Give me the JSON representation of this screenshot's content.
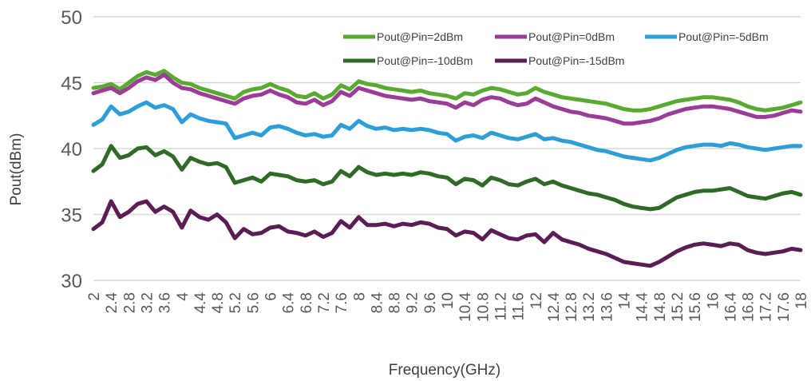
{
  "chart_data": {
    "type": "line",
    "title": "",
    "xlabel": "Frequency(GHz)",
    "ylabel": "Pout(dBm)",
    "ylim": [
      30,
      50
    ],
    "xlim": [
      2,
      18
    ],
    "yticks": [
      30,
      35,
      40,
      45,
      50
    ],
    "xticks": [
      "2",
      "2.4",
      "2.8",
      "3.2",
      "3.6",
      "4",
      "4.4",
      "4.8",
      "5.2",
      "5.6",
      "6",
      "6.4",
      "6.8",
      "7.2",
      "7.6",
      "8",
      "8.4",
      "8.8",
      "9.2",
      "9.6",
      "10",
      "10.4",
      "10.8",
      "11.2",
      "11.6",
      "12",
      "12.4",
      "12.8",
      "13.2",
      "13.6",
      "14",
      "14.4",
      "14.8",
      "15.2",
      "15.6",
      "16",
      "16.4",
      "16.8",
      "17.2",
      "17.6",
      "18"
    ],
    "grid": true,
    "legend_position": "top-right",
    "series": [
      {
        "name": "Pout@Pin=2dBm",
        "color": "#5aaa32",
        "x": [
          2,
          2.2,
          2.4,
          2.6,
          2.8,
          3.0,
          3.2,
          3.4,
          3.6,
          3.8,
          4.0,
          4.2,
          4.4,
          4.6,
          4.8,
          5.0,
          5.2,
          5.4,
          5.6,
          5.8,
          6.0,
          6.2,
          6.4,
          6.6,
          6.8,
          7.0,
          7.2,
          7.4,
          7.6,
          7.8,
          8.0,
          8.2,
          8.4,
          8.6,
          8.8,
          9.0,
          9.2,
          9.4,
          9.6,
          9.8,
          10.0,
          10.2,
          10.4,
          10.6,
          10.8,
          11.0,
          11.2,
          11.4,
          11.6,
          11.8,
          12.0,
          12.2,
          12.4,
          12.6,
          12.8,
          13.0,
          13.2,
          13.4,
          13.6,
          13.8,
          14.0,
          14.2,
          14.4,
          14.6,
          14.8,
          15.0,
          15.2,
          15.4,
          15.6,
          15.8,
          16.0,
          16.2,
          16.4,
          16.6,
          16.8,
          17.0,
          17.2,
          17.4,
          17.6,
          17.8,
          18.0
        ],
        "y": [
          44.6,
          44.7,
          44.9,
          44.5,
          45.0,
          45.5,
          45.8,
          45.6,
          45.9,
          45.4,
          45.0,
          44.9,
          44.6,
          44.4,
          44.2,
          44.0,
          43.8,
          44.3,
          44.5,
          44.6,
          44.9,
          44.6,
          44.4,
          44.0,
          43.9,
          44.2,
          43.8,
          44.1,
          44.8,
          44.5,
          45.1,
          44.9,
          44.8,
          44.6,
          44.5,
          44.4,
          44.3,
          44.4,
          44.2,
          44.1,
          44.0,
          43.8,
          44.2,
          44.1,
          44.4,
          44.6,
          44.5,
          44.3,
          44.1,
          44.2,
          44.6,
          44.3,
          44.1,
          43.9,
          43.8,
          43.7,
          43.6,
          43.5,
          43.4,
          43.2,
          43.0,
          42.9,
          42.9,
          43.0,
          43.2,
          43.4,
          43.6,
          43.7,
          43.8,
          43.9,
          43.9,
          43.8,
          43.7,
          43.5,
          43.2,
          43.0,
          42.9,
          43.0,
          43.1,
          43.3,
          43.5
        ]
      },
      {
        "name": "Pout@Pin=0dBm",
        "color": "#9b3c96",
        "x": [
          2,
          2.2,
          2.4,
          2.6,
          2.8,
          3.0,
          3.2,
          3.4,
          3.6,
          3.8,
          4.0,
          4.2,
          4.4,
          4.6,
          4.8,
          5.0,
          5.2,
          5.4,
          5.6,
          5.8,
          6.0,
          6.2,
          6.4,
          6.6,
          6.8,
          7.0,
          7.2,
          7.4,
          7.6,
          7.8,
          8.0,
          8.2,
          8.4,
          8.6,
          8.8,
          9.0,
          9.2,
          9.4,
          9.6,
          9.8,
          10.0,
          10.2,
          10.4,
          10.6,
          10.8,
          11.0,
          11.2,
          11.4,
          11.6,
          11.8,
          12.0,
          12.2,
          12.4,
          12.6,
          12.8,
          13.0,
          13.2,
          13.4,
          13.6,
          13.8,
          14.0,
          14.2,
          14.4,
          14.6,
          14.8,
          15.0,
          15.2,
          15.4,
          15.6,
          15.8,
          16.0,
          16.2,
          16.4,
          16.6,
          16.8,
          17.0,
          17.2,
          17.4,
          17.6,
          17.8,
          18.0
        ],
        "y": [
          44.2,
          44.4,
          44.6,
          44.2,
          44.6,
          45.1,
          45.4,
          45.2,
          45.6,
          45.0,
          44.6,
          44.5,
          44.2,
          44.0,
          43.8,
          43.6,
          43.4,
          43.8,
          44.0,
          44.1,
          44.4,
          44.1,
          43.9,
          43.5,
          43.4,
          43.7,
          43.3,
          43.6,
          44.3,
          44.0,
          44.6,
          44.4,
          44.2,
          44.0,
          43.9,
          43.8,
          43.7,
          43.8,
          43.6,
          43.5,
          43.4,
          43.1,
          43.5,
          43.3,
          43.7,
          43.9,
          43.8,
          43.5,
          43.3,
          43.4,
          43.8,
          43.5,
          43.2,
          43.0,
          42.8,
          42.7,
          42.5,
          42.4,
          42.3,
          42.1,
          41.9,
          41.9,
          42.0,
          42.1,
          42.3,
          42.6,
          42.8,
          43.0,
          43.1,
          43.2,
          43.2,
          43.1,
          43.0,
          42.8,
          42.6,
          42.4,
          42.4,
          42.5,
          42.7,
          42.9,
          42.8
        ]
      },
      {
        "name": "Pout@Pin=-5dBm",
        "color": "#2e9fd6",
        "x": [
          2,
          2.2,
          2.4,
          2.6,
          2.8,
          3.0,
          3.2,
          3.4,
          3.6,
          3.8,
          4.0,
          4.2,
          4.4,
          4.6,
          4.8,
          5.0,
          5.2,
          5.4,
          5.6,
          5.8,
          6.0,
          6.2,
          6.4,
          6.6,
          6.8,
          7.0,
          7.2,
          7.4,
          7.6,
          7.8,
          8.0,
          8.2,
          8.4,
          8.6,
          8.8,
          9.0,
          9.2,
          9.4,
          9.6,
          9.8,
          10.0,
          10.2,
          10.4,
          10.6,
          10.8,
          11.0,
          11.2,
          11.4,
          11.6,
          11.8,
          12.0,
          12.2,
          12.4,
          12.6,
          12.8,
          13.0,
          13.2,
          13.4,
          13.6,
          13.8,
          14.0,
          14.2,
          14.4,
          14.6,
          14.8,
          15.0,
          15.2,
          15.4,
          15.6,
          15.8,
          16.0,
          16.2,
          16.4,
          16.6,
          16.8,
          17.0,
          17.2,
          17.4,
          17.6,
          17.8,
          18.0
        ],
        "y": [
          41.8,
          42.2,
          43.2,
          42.6,
          42.8,
          43.2,
          43.5,
          43.1,
          43.3,
          43.0,
          42.0,
          42.6,
          42.3,
          42.1,
          42.0,
          41.9,
          40.8,
          41.0,
          41.2,
          41.0,
          41.6,
          41.7,
          41.5,
          41.2,
          41.0,
          41.1,
          40.9,
          41.0,
          41.8,
          41.5,
          42.1,
          41.7,
          41.5,
          41.6,
          41.4,
          41.5,
          41.4,
          41.5,
          41.4,
          41.2,
          41.1,
          40.6,
          40.9,
          41.0,
          40.8,
          41.2,
          41.0,
          40.8,
          40.7,
          40.9,
          41.1,
          40.7,
          40.8,
          40.6,
          40.5,
          40.3,
          40.1,
          39.9,
          39.8,
          39.6,
          39.4,
          39.3,
          39.2,
          39.1,
          39.3,
          39.6,
          39.9,
          40.1,
          40.2,
          40.3,
          40.3,
          40.2,
          40.4,
          40.3,
          40.1,
          40.0,
          39.9,
          40.0,
          40.1,
          40.2,
          40.2
        ]
      },
      {
        "name": "Pout@Pin=-10dBm",
        "color": "#2f6b26",
        "x": [
          2,
          2.2,
          2.4,
          2.6,
          2.8,
          3.0,
          3.2,
          3.4,
          3.6,
          3.8,
          4.0,
          4.2,
          4.4,
          4.6,
          4.8,
          5.0,
          5.2,
          5.4,
          5.6,
          5.8,
          6.0,
          6.2,
          6.4,
          6.6,
          6.8,
          7.0,
          7.2,
          7.4,
          7.6,
          7.8,
          8.0,
          8.2,
          8.4,
          8.6,
          8.8,
          9.0,
          9.2,
          9.4,
          9.6,
          9.8,
          10.0,
          10.2,
          10.4,
          10.6,
          10.8,
          11.0,
          11.2,
          11.4,
          11.6,
          11.8,
          12.0,
          12.2,
          12.4,
          12.6,
          12.8,
          13.0,
          13.2,
          13.4,
          13.6,
          13.8,
          14.0,
          14.2,
          14.4,
          14.6,
          14.8,
          15.0,
          15.2,
          15.4,
          15.6,
          15.8,
          16.0,
          16.2,
          16.4,
          16.6,
          16.8,
          17.0,
          17.2,
          17.4,
          17.6,
          17.8,
          18.0
        ],
        "y": [
          38.3,
          38.8,
          40.2,
          39.3,
          39.5,
          40.0,
          40.1,
          39.5,
          39.8,
          39.4,
          38.4,
          39.3,
          39.0,
          38.8,
          38.9,
          38.6,
          37.4,
          37.6,
          37.8,
          37.5,
          38.1,
          38.0,
          37.9,
          37.6,
          37.5,
          37.6,
          37.3,
          37.5,
          38.3,
          37.9,
          38.6,
          38.2,
          38.0,
          38.1,
          38.0,
          38.1,
          38.0,
          38.2,
          38.1,
          37.9,
          37.8,
          37.3,
          37.7,
          37.6,
          37.2,
          37.8,
          37.6,
          37.3,
          37.2,
          37.5,
          37.7,
          37.3,
          37.5,
          37.2,
          37.0,
          36.8,
          36.6,
          36.5,
          36.3,
          36.1,
          35.8,
          35.6,
          35.5,
          35.4,
          35.5,
          35.9,
          36.3,
          36.5,
          36.7,
          36.8,
          36.8,
          36.9,
          37.0,
          36.7,
          36.4,
          36.3,
          36.2,
          36.4,
          36.6,
          36.7,
          36.5
        ]
      },
      {
        "name": "Pout@Pin=-15dBm",
        "color": "#5a1e55",
        "x": [
          2,
          2.2,
          2.4,
          2.6,
          2.8,
          3.0,
          3.2,
          3.4,
          3.6,
          3.8,
          4.0,
          4.2,
          4.4,
          4.6,
          4.8,
          5.0,
          5.2,
          5.4,
          5.6,
          5.8,
          6.0,
          6.2,
          6.4,
          6.6,
          6.8,
          7.0,
          7.2,
          7.4,
          7.6,
          7.8,
          8.0,
          8.2,
          8.4,
          8.6,
          8.8,
          9.0,
          9.2,
          9.4,
          9.6,
          9.8,
          10.0,
          10.2,
          10.4,
          10.6,
          10.8,
          11.0,
          11.2,
          11.4,
          11.6,
          11.8,
          12.0,
          12.2,
          12.4,
          12.6,
          12.8,
          13.0,
          13.2,
          13.4,
          13.6,
          13.8,
          14.0,
          14.2,
          14.4,
          14.6,
          14.8,
          15.0,
          15.2,
          15.4,
          15.6,
          15.8,
          16.0,
          16.2,
          16.4,
          16.6,
          16.8,
          17.0,
          17.2,
          17.4,
          17.6,
          17.8,
          18.0
        ],
        "y": [
          33.9,
          34.4,
          36.0,
          34.8,
          35.2,
          35.8,
          36.0,
          35.2,
          35.6,
          35.2,
          34.0,
          35.3,
          34.8,
          34.6,
          35.0,
          34.4,
          33.2,
          33.9,
          33.5,
          33.6,
          34.0,
          34.1,
          33.7,
          33.6,
          33.4,
          33.7,
          33.3,
          33.6,
          34.5,
          34.0,
          34.8,
          34.2,
          34.2,
          34.3,
          34.1,
          34.3,
          34.2,
          34.4,
          34.3,
          34.0,
          33.9,
          33.4,
          33.7,
          33.6,
          33.1,
          33.8,
          33.5,
          33.2,
          33.1,
          33.4,
          33.5,
          32.9,
          33.6,
          33.1,
          32.9,
          32.7,
          32.4,
          32.2,
          32.0,
          31.7,
          31.4,
          31.3,
          31.2,
          31.1,
          31.4,
          31.8,
          32.2,
          32.5,
          32.7,
          32.8,
          32.7,
          32.6,
          32.8,
          32.7,
          32.3,
          32.1,
          32.0,
          32.1,
          32.2,
          32.4,
          32.3
        ]
      }
    ]
  }
}
